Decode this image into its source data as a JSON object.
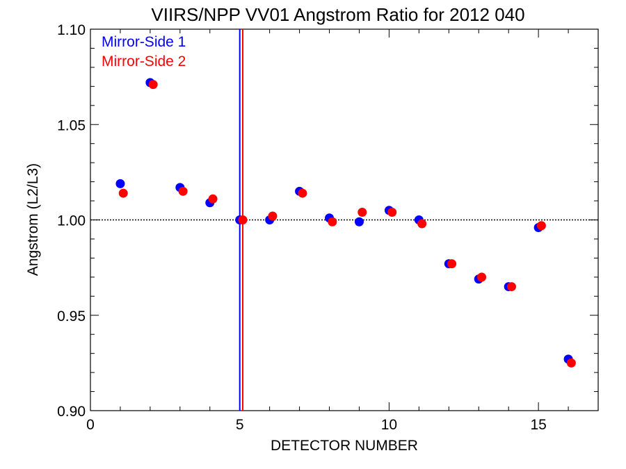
{
  "chart_data": {
    "type": "scatter",
    "title": "VIIRS/NPP VV01 Angstrom Ratio for 2012 040",
    "xlabel": "DETECTOR NUMBER",
    "ylabel": "Angstrom (L2/L3)",
    "xlim": [
      0,
      17
    ],
    "ylim": [
      0.9,
      1.1
    ],
    "x_ticks": [
      0,
      5,
      10,
      15
    ],
    "x_tick_labels": [
      "0",
      "5",
      "10",
      "15"
    ],
    "y_ticks": [
      0.9,
      0.95,
      1.0,
      1.05,
      1.1
    ],
    "y_tick_labels": [
      "0.90",
      "0.95",
      "1.00",
      "1.05",
      "1.10"
    ],
    "reference_line": {
      "y": 1.0,
      "style": "dotted",
      "color": "#000000"
    },
    "vertical_lines": [
      {
        "x": 5.0,
        "color": "#0000ff"
      },
      {
        "x": 5.1,
        "color": "#ff0000"
      }
    ],
    "legend_position": "top-left",
    "series": [
      {
        "name": "Mirror-Side 1",
        "color": "#0000ff",
        "x": [
          1,
          2,
          3,
          4,
          5,
          6,
          7,
          8,
          9,
          10,
          11,
          12,
          13,
          14,
          15,
          16
        ],
        "y": [
          1.019,
          1.072,
          1.017,
          1.009,
          1.0,
          1.0,
          1.015,
          1.001,
          0.999,
          1.005,
          1.0,
          0.977,
          0.969,
          0.965,
          0.996,
          0.927
        ]
      },
      {
        "name": "Mirror-Side 2",
        "color": "#ff0000",
        "x": [
          1.1,
          2.1,
          3.1,
          4.1,
          5.1,
          6.1,
          7.1,
          8.1,
          9.1,
          10.1,
          11.1,
          12.1,
          13.1,
          14.1,
          15.1,
          16.1
        ],
        "y": [
          1.014,
          1.071,
          1.015,
          1.011,
          1.0,
          1.002,
          1.014,
          0.999,
          1.004,
          1.004,
          0.998,
          0.977,
          0.97,
          0.965,
          0.997,
          0.925
        ]
      }
    ]
  }
}
